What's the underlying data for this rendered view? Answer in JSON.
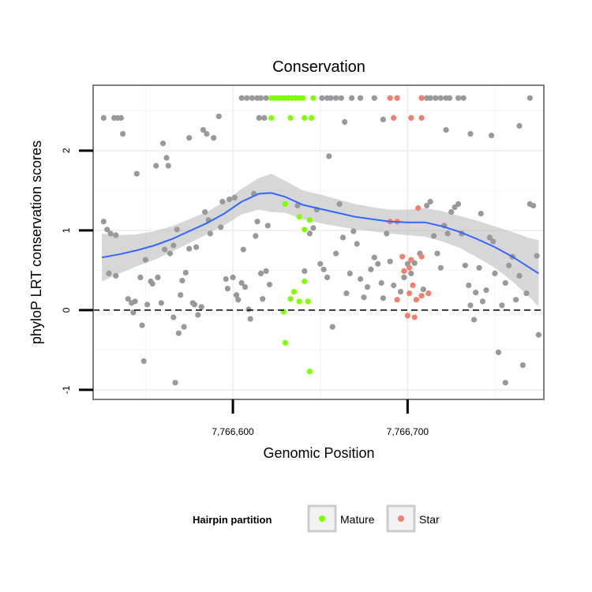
{
  "chart_data": {
    "type": "scatter",
    "title": "Conservation",
    "xlabel": "Genomic Position",
    "ylabel": "phyloP LRT conservation scores",
    "xlim": [
      7766520,
      7766778
    ],
    "ylim": [
      -1.12,
      2.82
    ],
    "x_ticks": [
      7766600,
      7766700
    ],
    "x_tick_labels": [
      "7,766,600",
      "7,766,700"
    ],
    "y_ticks": [
      -1,
      0,
      1,
      2
    ],
    "y_tick_labels": [
      "-1",
      "0",
      "1",
      "2"
    ],
    "reference_line": {
      "y": 0,
      "style": "dashed"
    },
    "grid": true,
    "legend": {
      "title": "Hairpin partition",
      "position": "bottom",
      "entries": [
        {
          "label": "Mature",
          "color": "#7fff00"
        },
        {
          "label": "Star",
          "color": "#f08070"
        }
      ]
    },
    "colors": {
      "other": "#999999",
      "mature": "#7fff00",
      "star": "#f08070",
      "smooth_line": "#3366ff",
      "ribbon": "#bdbdbd"
    },
    "smooth": {
      "x": [
        7766525,
        7766535,
        7766545,
        7766555,
        7766565,
        7766575,
        7766585,
        7766595,
        7766605,
        7766615,
        7766622,
        7766630,
        7766640,
        7766650,
        7766660,
        7766670,
        7766680,
        7766690,
        7766700,
        7766710,
        7766720,
        7766730,
        7766740,
        7766750,
        7766760,
        7766770,
        7766775
      ],
      "y": [
        0.66,
        0.7,
        0.75,
        0.81,
        0.89,
        0.99,
        1.09,
        1.21,
        1.36,
        1.46,
        1.47,
        1.42,
        1.32,
        1.27,
        1.22,
        1.17,
        1.14,
        1.11,
        1.1,
        1.1,
        1.05,
        0.98,
        0.89,
        0.79,
        0.67,
        0.53,
        0.46
      ],
      "upper": [
        0.96,
        0.94,
        0.95,
        0.99,
        1.05,
        1.14,
        1.23,
        1.36,
        1.52,
        1.66,
        1.71,
        1.62,
        1.5,
        1.45,
        1.39,
        1.33,
        1.29,
        1.26,
        1.26,
        1.28,
        1.24,
        1.18,
        1.12,
        1.05,
        0.98,
        0.9,
        0.88
      ],
      "lower": [
        0.36,
        0.46,
        0.55,
        0.63,
        0.73,
        0.84,
        0.95,
        1.06,
        1.2,
        1.26,
        1.23,
        1.22,
        1.14,
        1.09,
        1.05,
        1.01,
        0.99,
        0.96,
        0.94,
        0.92,
        0.86,
        0.78,
        0.66,
        0.53,
        0.36,
        0.16,
        0.04
      ]
    },
    "points_other": [
      [
        7766526,
        2.41
      ],
      [
        7766532,
        2.41
      ],
      [
        7766534,
        2.41
      ],
      [
        7766536,
        2.41
      ],
      [
        7766526,
        1.11
      ],
      [
        7766528,
        1.01
      ],
      [
        7766530,
        0.96
      ],
      [
        7766533,
        0.94
      ],
      [
        7766529,
        0.46
      ],
      [
        7766533,
        0.43
      ],
      [
        7766537,
        2.21
      ],
      [
        7766540,
        0.14
      ],
      [
        7766542,
        0.09
      ],
      [
        7766543,
        -0.03
      ],
      [
        7766545,
        1.71
      ],
      [
        7766547,
        0.41
      ],
      [
        7766548,
        -0.19
      ],
      [
        7766549,
        -0.64
      ],
      [
        7766551,
        0.07
      ],
      [
        7766550,
        0.63
      ],
      [
        7766554,
        0.33
      ],
      [
        7766556,
        1.81
      ],
      [
        7766557,
        0.41
      ],
      [
        7766559,
        0.09
      ],
      [
        7766560,
        2.09
      ],
      [
        7766562,
        1.91
      ],
      [
        7766563,
        1.81
      ],
      [
        7766564,
        0.71
      ],
      [
        7766566,
        0.81
      ],
      [
        7766568,
        1.01
      ],
      [
        7766566,
        -0.09
      ],
      [
        7766569,
        -0.29
      ],
      [
        7766572,
        -0.21
      ],
      [
        7766570,
        0.19
      ],
      [
        7766573,
        0.47
      ],
      [
        7766575,
        0.77
      ],
      [
        7766575,
        2.16
      ],
      [
        7766577,
        0.09
      ],
      [
        7766578,
        0.07
      ],
      [
        7766580,
        -0.06
      ],
      [
        7766582,
        0.04
      ],
      [
        7766584,
        1.23
      ],
      [
        7766586,
        1.13
      ],
      [
        7766583,
        2.26
      ],
      [
        7766585,
        2.21
      ],
      [
        7766589,
        2.16
      ],
      [
        7766592,
        2.43
      ],
      [
        7766594,
        1.36
      ],
      [
        7766596,
        0.39
      ],
      [
        7766598,
        1.39
      ],
      [
        7766600,
        0.41
      ],
      [
        7766602,
        0.19
      ],
      [
        7766603,
        0.13
      ],
      [
        7766605,
        0.34
      ],
      [
        7766606,
        0.76
      ],
      [
        7766607,
        0.29
      ],
      [
        7766609,
        0.01
      ],
      [
        7766610,
        -0.11
      ],
      [
        7766612,
        1.46
      ],
      [
        7766614,
        1.11
      ],
      [
        7766616,
        0.46
      ],
      [
        7766617,
        0.14
      ],
      [
        7766619,
        0.49
      ],
      [
        7766621,
        0.32
      ],
      [
        7766605,
        2.66
      ],
      [
        7766608,
        2.66
      ],
      [
        7766611,
        2.66
      ],
      [
        7766614,
        2.66
      ],
      [
        7766616,
        2.66
      ],
      [
        7766619,
        2.66
      ],
      [
        7766615,
        2.41
      ],
      [
        7766618,
        2.41
      ],
      [
        7766637,
        1.31
      ],
      [
        7766641,
        0.49
      ],
      [
        7766644,
        0.96
      ],
      [
        7766646,
        1.03
      ],
      [
        7766648,
        1.26
      ],
      [
        7766650,
        0.58
      ],
      [
        7766652,
        0.51
      ],
      [
        7766654,
        0.41
      ],
      [
        7766655,
        1.93
      ],
      [
        7766657,
        -0.21
      ],
      [
        7766659,
        0.71
      ],
      [
        7766661,
        1.33
      ],
      [
        7766663,
        0.91
      ],
      [
        7766665,
        0.21
      ],
      [
        7766667,
        0.46
      ],
      [
        7766669,
        0.99
      ],
      [
        7766671,
        0.83
      ],
      [
        7766673,
        0.39
      ],
      [
        7766675,
        0.16
      ],
      [
        7766677,
        0.29
      ],
      [
        7766679,
        0.51
      ],
      [
        7766681,
        0.66
      ],
      [
        7766683,
        0.58
      ],
      [
        7766685,
        0.34
      ],
      [
        7766686,
        0.15
      ],
      [
        7766688,
        0.96
      ],
      [
        7766651,
        2.66
      ],
      [
        7766654,
        2.66
      ],
      [
        7766656,
        2.66
      ],
      [
        7766659,
        2.66
      ],
      [
        7766662,
        2.66
      ],
      [
        7766668,
        2.66
      ],
      [
        7766673,
        2.66
      ],
      [
        7766681,
        2.66
      ],
      [
        7766664,
        2.36
      ],
      [
        7766686,
        2.39
      ],
      [
        7766690,
        0.61
      ],
      [
        7766692,
        0.31
      ],
      [
        7766696,
        0.23
      ],
      [
        7766698,
        0.41
      ],
      [
        7766700,
        0.58
      ],
      [
        7766702,
        0.46
      ],
      [
        7766704,
        0.59
      ],
      [
        7766707,
        0.71
      ],
      [
        7766709,
        0.26
      ],
      [
        7766711,
        1.31
      ],
      [
        7766713,
        1.36
      ],
      [
        7766715,
        0.93
      ],
      [
        7766717,
        0.71
      ],
      [
        7766719,
        0.53
      ],
      [
        7766721,
        1.06
      ],
      [
        7766723,
        0.96
      ],
      [
        7766725,
        1.23
      ],
      [
        7766727,
        1.29
      ],
      [
        7766729,
        1.33
      ],
      [
        7766731,
        0.96
      ],
      [
        7766733,
        0.56
      ],
      [
        7766735,
        0.31
      ],
      [
        7766736,
        0.06
      ],
      [
        7766738,
        -0.12
      ],
      [
        7766739,
        0.22
      ],
      [
        7766741,
        0.53
      ],
      [
        7766743,
        0.11
      ],
      [
        7766745,
        0.25
      ],
      [
        7766747,
        0.91
      ],
      [
        7766749,
        0.86
      ],
      [
        7766750,
        0.46
      ],
      [
        7766752,
        -0.53
      ],
      [
        7766754,
        0.06
      ],
      [
        7766756,
        0.34
      ],
      [
        7766758,
        0.56
      ],
      [
        7766760,
        0.67
      ],
      [
        7766762,
        0.13
      ],
      [
        7766764,
        0.43
      ],
      [
        7766766,
        -0.69
      ],
      [
        7766768,
        0.21
      ],
      [
        7766770,
        1.33
      ],
      [
        7766772,
        1.31
      ],
      [
        7766774,
        0.68
      ],
      [
        7766775,
        -0.31
      ],
      [
        7766708,
        2.66
      ],
      [
        7766711,
        2.66
      ],
      [
        7766713,
        2.66
      ],
      [
        7766716,
        2.66
      ],
      [
        7766719,
        2.66
      ],
      [
        7766722,
        2.66
      ],
      [
        7766724,
        2.66
      ],
      [
        7766729,
        2.66
      ],
      [
        7766732,
        2.66
      ],
      [
        7766722,
        2.26
      ],
      [
        7766736,
        2.21
      ],
      [
        7766742,
        1.21
      ],
      [
        7766748,
        2.19
      ],
      [
        7766756,
        -0.91
      ],
      [
        7766764,
        2.31
      ],
      [
        7766770,
        2.66
      ],
      [
        7766544,
        0.11
      ],
      [
        7766553,
        0.36
      ],
      [
        7766561,
        0.76
      ],
      [
        7766567,
        -0.91
      ],
      [
        7766571,
        0.37
      ],
      [
        7766579,
        0.79
      ],
      [
        7766587,
        0.96
      ],
      [
        7766593,
        1.04
      ],
      [
        7766597,
        0.27
      ],
      [
        7766601,
        1.41
      ],
      [
        7766613,
        0.93
      ],
      [
        7766620,
        1.06
      ]
    ],
    "points_mature": [
      [
        7766622,
        2.66
      ],
      [
        7766624,
        2.66
      ],
      [
        7766626,
        2.66
      ],
      [
        7766628,
        2.66
      ],
      [
        7766630,
        2.66
      ],
      [
        7766632,
        2.66
      ],
      [
        7766634,
        2.66
      ],
      [
        7766636,
        2.66
      ],
      [
        7766638,
        2.66
      ],
      [
        7766640,
        2.66
      ],
      [
        7766646,
        2.66
      ],
      [
        7766622,
        2.41
      ],
      [
        7766633,
        2.41
      ],
      [
        7766641,
        2.41
      ],
      [
        7766645,
        2.41
      ],
      [
        7766630,
        1.33
      ],
      [
        7766638,
        1.17
      ],
      [
        7766641,
        1.01
      ],
      [
        7766644,
        1.13
      ],
      [
        7766641,
        0.36
      ],
      [
        7766635,
        0.23
      ],
      [
        7766633,
        0.14
      ],
      [
        7766638,
        0.11
      ],
      [
        7766643,
        0.11
      ],
      [
        7766629,
        -0.02
      ],
      [
        7766630,
        -0.41
      ],
      [
        7766644,
        -0.77
      ]
    ],
    "points_star": [
      [
        7766690,
        2.66
      ],
      [
        7766694,
        2.66
      ],
      [
        7766708,
        2.66
      ],
      [
        7766692,
        2.41
      ],
      [
        7766702,
        2.41
      ],
      [
        7766708,
        2.41
      ],
      [
        7766706,
        1.28
      ],
      [
        7766690,
        1.11
      ],
      [
        7766694,
        1.11
      ],
      [
        7766697,
        0.67
      ],
      [
        7766702,
        0.63
      ],
      [
        7766708,
        0.67
      ],
      [
        7766698,
        0.49
      ],
      [
        7766701,
        0.53
      ],
      [
        7766703,
        0.31
      ],
      [
        7766701,
        0.21
      ],
      [
        7766708,
        0.18
      ],
      [
        7766694,
        0.13
      ],
      [
        7766705,
        0.13
      ],
      [
        7766712,
        0.21
      ],
      [
        7766700,
        -0.07
      ],
      [
        7766704,
        -0.09
      ]
    ]
  }
}
